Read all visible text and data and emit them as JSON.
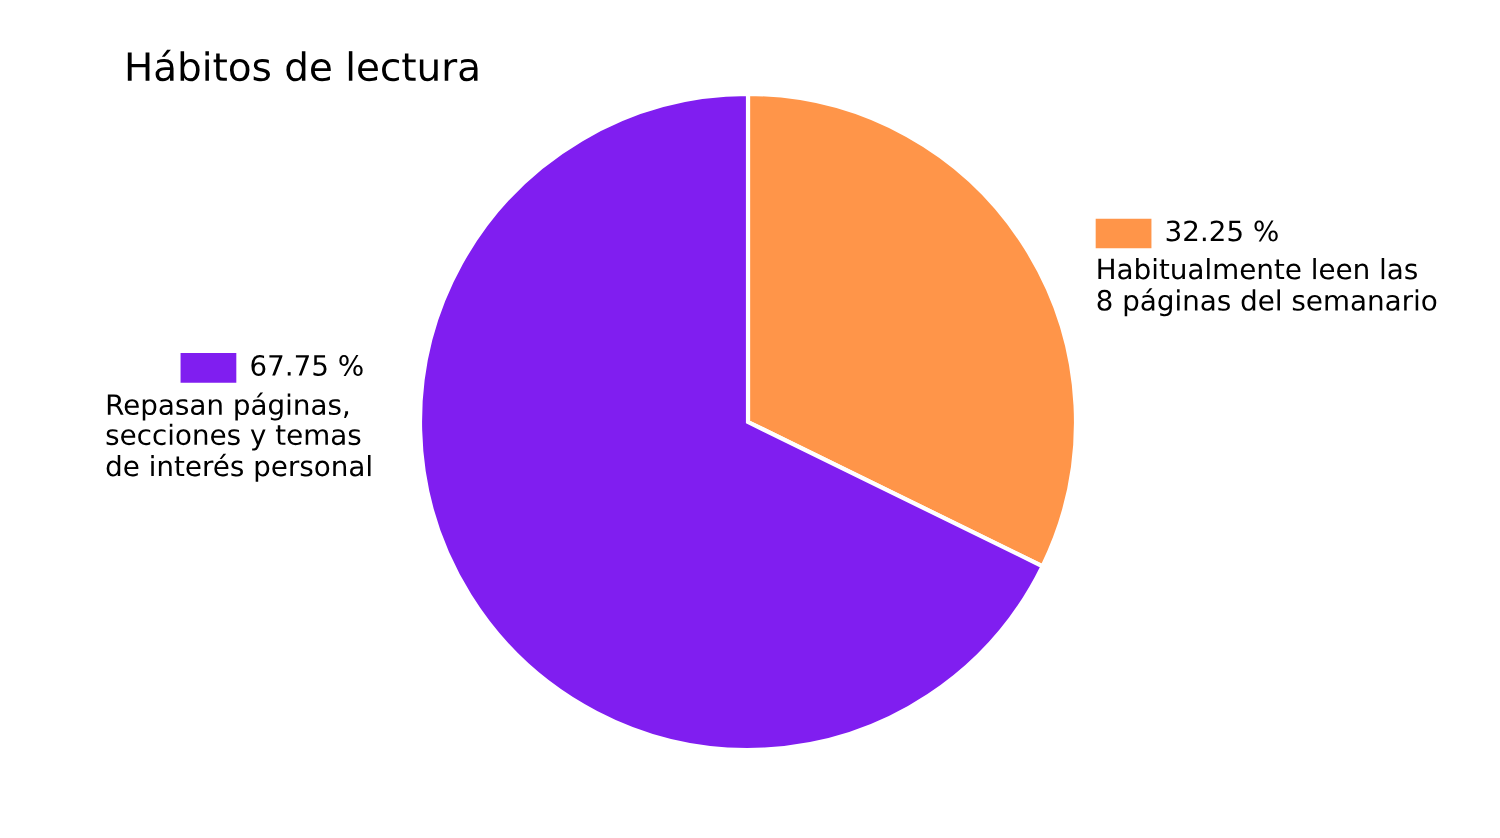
{
  "chart_data": {
    "type": "pie",
    "title": "Hábitos de lectura",
    "categories": [
      "Habitualmente leen las\n8 páginas del semanario",
      "Repasan páginas,\nsecciones y temas\nde interés personal"
    ],
    "values": [
      32.25,
      67.75
    ],
    "value_labels": [
      "32.25 %",
      "67.75 %"
    ],
    "colors": [
      "#ff9549",
      "#801ef0"
    ],
    "legend": "right"
  }
}
